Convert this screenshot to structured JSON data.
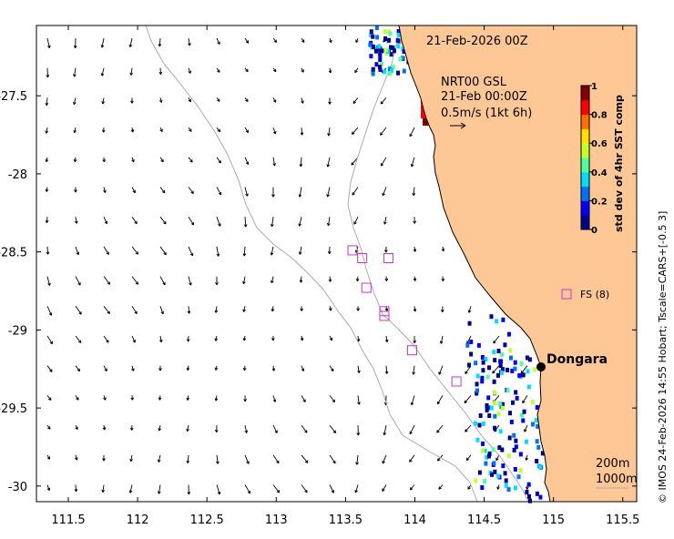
{
  "map": {
    "date_title": "21-Feb-2026 00Z",
    "product_title": "NRT00 GSL",
    "product_time": "21-Feb 00:00Z",
    "vector_scale_label": "0.5m/s (1kt 6h)",
    "place_label": "Dongara",
    "fs_legend": "FS (8)",
    "isobath_labels": [
      "200m",
      "1000m"
    ],
    "credit": "© IMOS 24-Feb-2026 14:55 Hobart; Tscale=CARS+[-0.5 3]",
    "land_color": "#fdc796",
    "ocean_color": "#ffffff",
    "marker_color": "#cc33cc",
    "isobath_color": "#aaaaaa",
    "lon_ticks": [
      "111.5",
      "112",
      "112.5",
      "113",
      "113.5",
      "114",
      "114.5",
      "115",
      "115.5"
    ],
    "lat_ticks": [
      "-27.5",
      "-28",
      "-28.5",
      "-29",
      "-29.5",
      "-30"
    ],
    "lon_range": [
      111.27,
      115.6
    ],
    "lat_range": [
      -30.1,
      -27.05
    ],
    "fs_markers": [
      {
        "lon": 113.55,
        "lat": -28.49
      },
      {
        "lon": 113.62,
        "lat": -28.54
      },
      {
        "lon": 113.81,
        "lat": -28.54
      },
      {
        "lon": 113.65,
        "lat": -28.73
      },
      {
        "lon": 113.78,
        "lat": -28.88
      },
      {
        "lon": 113.78,
        "lat": -28.91
      },
      {
        "lon": 113.98,
        "lat": -29.13
      },
      {
        "lon": 114.3,
        "lat": -29.33
      }
    ],
    "colorbar": {
      "label": "std dev of 4hr SST comp",
      "ticks": [
        "1",
        "0.8",
        "0.6",
        "0.4",
        "0.2",
        "0"
      ],
      "range": [
        0,
        1
      ],
      "colors": [
        "#00008f",
        "#0000ff",
        "#0070ff",
        "#00dfff",
        "#50ff9f",
        "#c0ff30",
        "#ffe000",
        "#ff7000",
        "#ff0000",
        "#800000"
      ]
    }
  }
}
